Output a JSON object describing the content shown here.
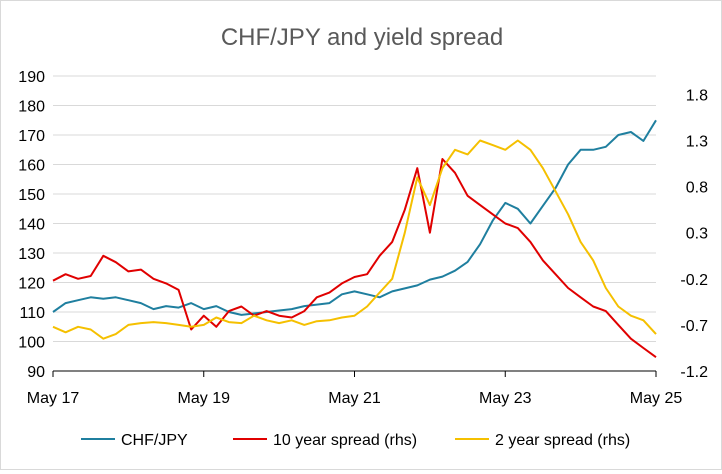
{
  "chart_data": {
    "type": "line",
    "title": "CHF/JPY and yield spread",
    "x": [
      "May 17",
      "Jul 17",
      "Sep 17",
      "Nov 17",
      "Jan 18",
      "Mar 18",
      "May 18",
      "Jul 18",
      "Sep 18",
      "Nov 18",
      "Jan 19",
      "Mar 19",
      "May 19",
      "Jul 19",
      "Sep 19",
      "Nov 19",
      "Jan 20",
      "Mar 20",
      "May 20",
      "Jul 20",
      "Sep 20",
      "Nov 20",
      "Jan 21",
      "Mar 21",
      "May 21",
      "Jul 21",
      "Sep 21",
      "Nov 21",
      "Jan 22",
      "Mar 22",
      "May 22",
      "Jul 22",
      "Sep 22",
      "Nov 22",
      "Jan 23",
      "Mar 23",
      "May 23",
      "Jul 23",
      "Sep 23",
      "Nov 23",
      "Jan 24",
      "Mar 24",
      "May 24",
      "Jul 24",
      "Sep 24",
      "Nov 24",
      "Jan 25",
      "Mar 25",
      "May 25"
    ],
    "x_tick_labels": [
      "May 17",
      "May 19",
      "May 21",
      "May 23",
      "May 25"
    ],
    "y_left": {
      "ticks": [
        90,
        100,
        110,
        120,
        130,
        140,
        150,
        160,
        170,
        180,
        190
      ],
      "range": [
        90,
        190
      ]
    },
    "y_right": {
      "ticks": [
        -1.2,
        -0.7,
        -0.2,
        0.3,
        0.8,
        1.3,
        1.8
      ],
      "range": [
        -1.2,
        2.0
      ]
    },
    "series": [
      {
        "name": "CHF/JPY",
        "axis": "left",
        "color": "#1f7f9f",
        "values": [
          110,
          113,
          114,
          115,
          114.5,
          115,
          114,
          113,
          111,
          112,
          111.5,
          113,
          111,
          112,
          110,
          109,
          109.5,
          110,
          110.5,
          111,
          112,
          112.5,
          113,
          116,
          117,
          116,
          115,
          117,
          118,
          119,
          121,
          122,
          124,
          127,
          133,
          141,
          147,
          145,
          140,
          146,
          152,
          160,
          165,
          165,
          166,
          170,
          171,
          168,
          175
        ]
      },
      {
        "name": "10 year spread (rhs)",
        "axis": "right",
        "color": "#e00000",
        "values": [
          -0.22,
          -0.15,
          -0.2,
          -0.17,
          0.05,
          -0.02,
          -0.12,
          -0.1,
          -0.2,
          -0.25,
          -0.32,
          -0.75,
          -0.6,
          -0.72,
          -0.55,
          -0.5,
          -0.6,
          -0.55,
          -0.6,
          -0.62,
          -0.55,
          -0.4,
          -0.35,
          -0.25,
          -0.18,
          -0.15,
          0.05,
          0.2,
          0.55,
          1.0,
          0.3,
          1.1,
          0.95,
          0.7,
          0.6,
          0.5,
          0.4,
          0.35,
          0.2,
          0.0,
          -0.15,
          -0.3,
          -0.4,
          -0.5,
          -0.55,
          -0.7,
          -0.85,
          -0.95,
          -1.05
        ]
      },
      {
        "name": "2 year spread (rhs)",
        "axis": "right",
        "color": "#f5c000",
        "values": [
          -0.72,
          -0.78,
          -0.72,
          -0.75,
          -0.85,
          -0.8,
          -0.7,
          -0.68,
          -0.67,
          -0.68,
          -0.7,
          -0.72,
          -0.7,
          -0.62,
          -0.67,
          -0.68,
          -0.6,
          -0.65,
          -0.68,
          -0.65,
          -0.7,
          -0.66,
          -0.65,
          -0.62,
          -0.6,
          -0.5,
          -0.35,
          -0.2,
          0.3,
          0.9,
          0.6,
          1.0,
          1.2,
          1.15,
          1.3,
          1.25,
          1.2,
          1.3,
          1.2,
          1.0,
          0.75,
          0.5,
          0.2,
          0.0,
          -0.3,
          -0.5,
          -0.6,
          -0.65,
          -0.8
        ]
      }
    ],
    "legend_position": "bottom",
    "grid": "horizontal"
  }
}
